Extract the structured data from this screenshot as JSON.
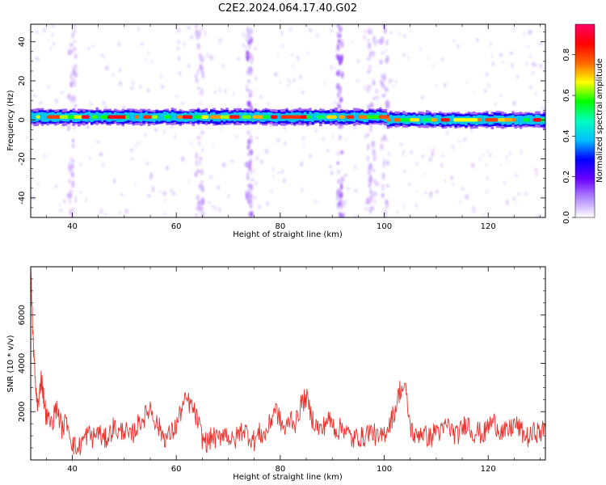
{
  "title": "C2E2.2024.064.17.40.G02",
  "chart_data": [
    {
      "type": "heatmap",
      "xlabel": "Height of straight line (km)",
      "ylabel": "Frequency (Hz)",
      "xlim": [
        32,
        131
      ],
      "ylim": [
        -50,
        49
      ],
      "xticks": [
        40,
        60,
        80,
        100,
        120
      ],
      "yticks": [
        -40,
        -20,
        0,
        20,
        40
      ],
      "colorbar": {
        "label": "Normalized spectral amplitude",
        "range": [
          0.0,
          0.95
        ],
        "ticks": [
          0.0,
          0.2,
          0.4,
          0.6,
          0.8
        ],
        "tick_labels": [
          "0.0",
          "0.2",
          "0.4",
          "0.6",
          "0.8"
        ],
        "colors": [
          "#ffffff",
          "#b388ff",
          "#6a00ff",
          "#0000ff",
          "#00bfff",
          "#00ffbf",
          "#00ff00",
          "#ffff00",
          "#ff6600",
          "#ff0000",
          "#ff0066"
        ]
      },
      "main_band": {
        "frequency_center": [
          0,
          2
        ],
        "frequency_halfwidth": 4
      },
      "vertical_streaks_km": [
        40,
        64.5,
        74,
        91.5,
        97.5,
        100
      ]
    },
    {
      "type": "line",
      "xlabel": "Height of straight line (km)",
      "ylabel": "SNR (10 * v/v)",
      "xlim": [
        32,
        131
      ],
      "ylim": [
        0,
        8000
      ],
      "xticks": [
        40,
        60,
        80,
        100,
        120
      ],
      "yticks": [
        2000,
        4000,
        6000
      ],
      "series": [
        {
          "color": "#e8332d",
          "x": [
            32,
            32.5,
            33,
            33.5,
            34,
            34.5,
            35,
            36,
            37,
            38,
            39,
            40,
            41,
            42,
            43,
            44,
            45,
            46,
            47,
            48,
            49,
            50,
            51,
            52,
            53,
            54,
            55,
            56,
            57,
            58,
            59,
            60,
            61,
            62,
            63,
            64,
            65,
            66,
            67,
            68,
            69,
            70,
            71,
            72,
            73,
            74,
            75,
            76,
            77,
            78,
            79,
            80,
            81,
            82,
            83,
            84,
            85,
            86,
            87,
            88,
            89,
            90,
            91,
            92,
            93,
            94,
            95,
            96,
            97,
            98,
            99,
            100,
            101,
            102,
            103,
            104,
            105,
            106,
            107,
            108,
            109,
            110,
            111,
            112,
            113,
            114,
            115,
            116,
            117,
            118,
            119,
            120,
            121,
            122,
            123,
            124,
            125,
            126,
            127,
            128,
            129,
            130,
            131
          ],
          "y": [
            7800,
            4800,
            2800,
            2200,
            3500,
            2600,
            1800,
            1500,
            2200,
            1300,
            1600,
            700,
            400,
            800,
            1100,
            900,
            1200,
            800,
            1000,
            1400,
            1100,
            1300,
            900,
            1200,
            1600,
            1800,
            2200,
            1600,
            1200,
            900,
            1100,
            1400,
            2100,
            2500,
            2200,
            1700,
            900,
            700,
            1000,
            800,
            1200,
            1000,
            700,
            1100,
            1300,
            1000,
            800,
            1100,
            1000,
            1500,
            2200,
            1600,
            1200,
            1800,
            1500,
            2300,
            2600,
            1800,
            1400,
            1200,
            1700,
            1500,
            1200,
            1400,
            1100,
            800,
            1000,
            900,
            1200,
            1100,
            800,
            1100,
            1500,
            2000,
            2900,
            3000,
            1400,
            900,
            1200,
            1000,
            900,
            1300,
            1100,
            1500,
            1200,
            1000,
            1300,
            1600,
            1100,
            1200,
            1000,
            1400,
            1600,
            1300,
            1100,
            1200,
            1500,
            1300,
            1000,
            900,
            1200,
            1100,
            1300
          ]
        }
      ]
    }
  ]
}
